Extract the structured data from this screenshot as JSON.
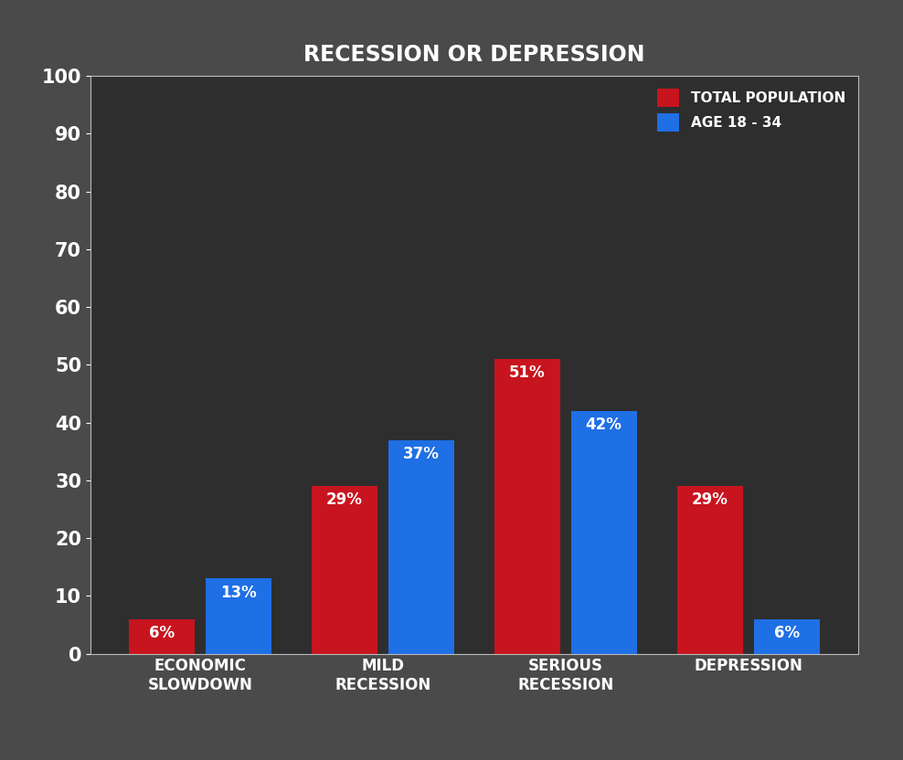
{
  "chart_data": {
    "type": "bar",
    "title": "RECESSION OR DEPRESSION",
    "categories": [
      "ECONOMIC\nSLOWDOWN",
      "MILD\nRECESSION",
      "SERIOUS\nRECESSION",
      "DEPRESSION"
    ],
    "series": [
      {
        "name": "TOTAL POPULATION",
        "color": "#c8141e",
        "values": [
          6,
          29,
          51,
          29
        ],
        "value_labels": [
          "6%",
          "29%",
          "51%",
          "29%"
        ]
      },
      {
        "name": "AGE 18 - 34",
        "color": "#1f6fe5",
        "values": [
          13,
          37,
          42,
          6
        ],
        "value_labels": [
          "13%",
          "37%",
          "42%",
          "6%"
        ]
      }
    ],
    "ylim": [
      0,
      100
    ],
    "yticks": [
      0,
      10,
      20,
      30,
      40,
      50,
      60,
      70,
      80,
      90,
      100
    ],
    "grid": false,
    "legend": "upper right",
    "data_labels": true
  }
}
